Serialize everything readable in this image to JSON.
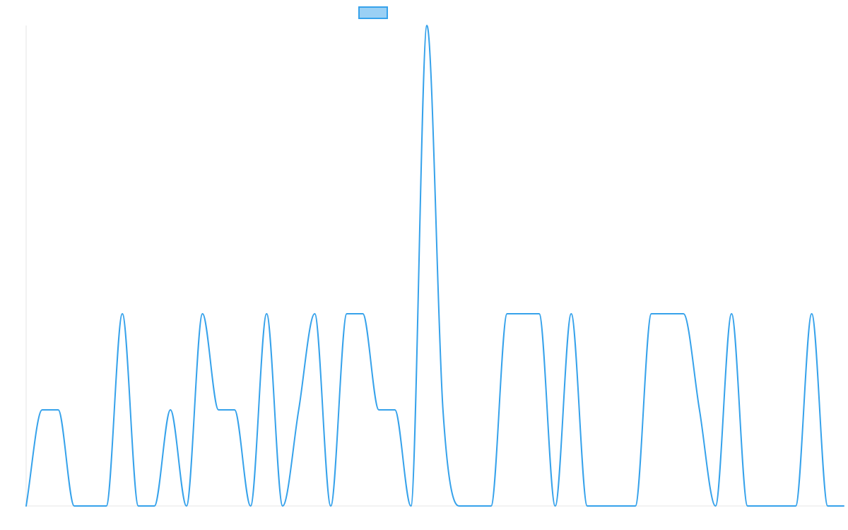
{
  "chart_data": {
    "type": "line",
    "title": "",
    "xlabel": "",
    "ylabel": "",
    "grid": false,
    "legend_position": "top-center",
    "x": [
      0,
      1,
      2,
      3,
      4,
      5,
      6,
      7,
      8,
      9,
      10,
      11,
      12,
      13,
      14,
      15,
      16,
      17,
      18,
      19,
      20,
      21,
      22,
      23,
      24,
      25,
      26,
      27,
      28,
      29,
      30,
      31,
      32,
      33,
      34,
      35,
      36,
      37,
      38,
      39,
      40,
      41,
      42,
      43,
      44,
      45,
      46,
      47,
      48,
      49,
      50,
      51
    ],
    "ylim": [
      0,
      5
    ],
    "series": [
      {
        "name": "",
        "color": "#36a2eb",
        "fill_color": "#9ad0f5",
        "values": [
          0,
          1,
          1,
          0,
          0,
          0,
          2,
          0,
          0,
          1,
          0,
          2,
          1,
          1,
          0,
          2,
          0,
          1,
          2,
          0,
          2,
          2,
          1,
          1,
          0,
          5,
          1,
          0,
          0,
          0,
          2,
          2,
          2,
          0,
          2,
          0,
          0,
          0,
          0,
          2,
          2,
          2,
          1,
          0,
          2,
          0,
          0,
          0,
          0,
          2,
          0,
          0
        ]
      }
    ]
  }
}
